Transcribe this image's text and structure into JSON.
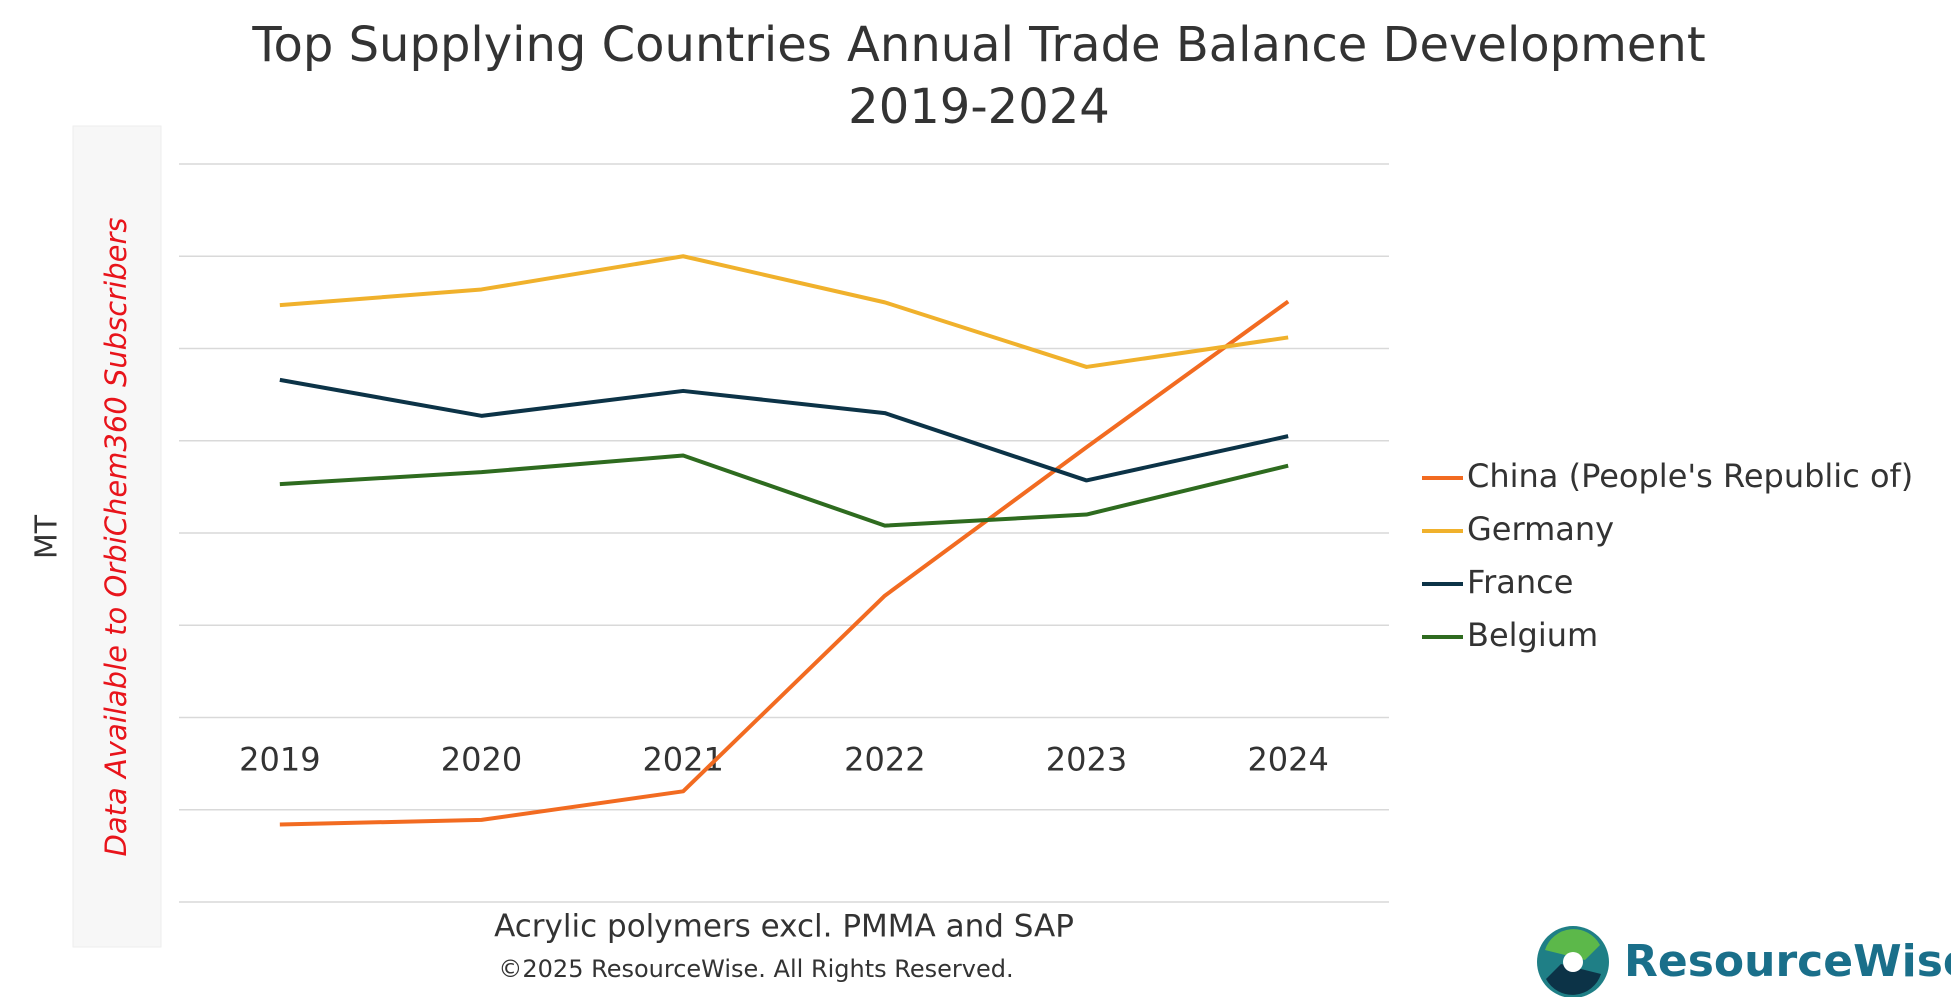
{
  "chart_data": {
    "type": "line",
    "title": [
      "Top Supplying Countries Annual Trade Balance Development",
      "2019-2024"
    ],
    "y_label": "MT",
    "watermark": "Data Available to OrbiChem360 Subscribers",
    "x_label": "Acrylic polymers excl. PMMA and SAP",
    "copyright": "©2025 ResourceWise. All Rights Reserved.",
    "logo": "ResourceWise®",
    "categories": [
      "2019",
      "2020",
      "2021",
      "2022",
      "2023",
      "2024"
    ],
    "series": [
      {
        "name": "China (People's Republic of)",
        "color": "#f26b21",
        "values": [
          -1.16,
          -1.11,
          -0.8,
          1.32,
          2.93,
          4.51
        ]
      },
      {
        "name": "Germany",
        "color": "#f0b12c",
        "values": [
          4.47,
          4.64,
          5.0,
          4.5,
          3.8,
          4.12
        ]
      },
      {
        "name": "France",
        "color": "#0c3347",
        "values": [
          3.66,
          3.27,
          3.54,
          3.3,
          2.57,
          3.05
        ]
      },
      {
        "name": "Belgium",
        "color": "#2e6b1f",
        "values": [
          2.53,
          2.66,
          2.84,
          2.08,
          2.2,
          2.73
        ]
      }
    ],
    "ylim": [
      -2,
      6
    ],
    "grid_values": [
      -2,
      -1,
      0,
      1,
      2,
      3,
      4,
      5,
      6
    ],
    "grid": true,
    "legend": "right"
  }
}
